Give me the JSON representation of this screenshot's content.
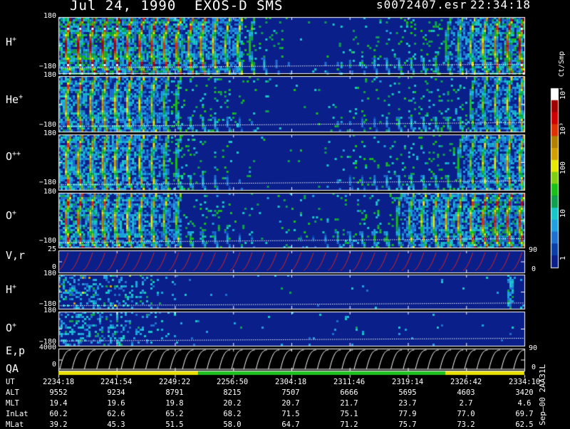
{
  "header": {
    "date": "Jul 24, 1990",
    "instrument": "EXOS-D SMS",
    "file": "s0072407.esr",
    "time": "22:34:18"
  },
  "colorbar": {
    "unit": "Ct/Smp",
    "ticks": [
      "10⁴",
      "10³",
      "100",
      "10",
      "1"
    ],
    "colors": [
      "#0a1f8a",
      "#0a3fa8",
      "#1e6fd0",
      "#1fa0e0",
      "#18c8c8",
      "#10a050",
      "#18c018",
      "#7fd010",
      "#e8e800",
      "#d0a000",
      "#b08000",
      "#e03000",
      "#d00000",
      "#a00000",
      "#ffffff"
    ]
  },
  "panels": [
    {
      "id": "h-plus",
      "label": "H",
      "sup": "+",
      "ymax": "180",
      "ymin": "−180",
      "right": ""
    },
    {
      "id": "he-plus",
      "label": "He",
      "sup": "+",
      "ymax": "180",
      "ymin": "−180",
      "right": ""
    },
    {
      "id": "o-plusplus",
      "label": "O",
      "sup": "++",
      "ymax": "180",
      "ymin": "−180",
      "right": ""
    },
    {
      "id": "o-plus",
      "label": "O",
      "sup": "+",
      "ymax": "180",
      "ymin": "−180",
      "right": ""
    },
    {
      "id": "vr",
      "label": "V,r",
      "sup": "",
      "ymax": "25",
      "ymin": "0",
      "right_top": "90",
      "right_bottom": "0"
    },
    {
      "id": "h-plus-2",
      "label": "H",
      "sup": "+",
      "ymax": "180",
      "ymin": "−180",
      "right": ""
    },
    {
      "id": "o-plus-2",
      "label": "O",
      "sup": "+",
      "ymax": "180",
      "ymin": "−180",
      "right": ""
    },
    {
      "id": "ep",
      "label": "E,p",
      "sup": "",
      "ymax": "4000",
      "ymin": "0",
      "right_top": "90",
      "right_bottom": "0"
    }
  ],
  "qa_label": "QA",
  "ephemeris": {
    "labels": [
      "UT",
      "ALT",
      "MLT",
      "InLat",
      "MLat"
    ],
    "columns": [
      {
        "UT": "2234:18",
        "ALT": "9552",
        "MLT": "19.4",
        "InLat": "60.2",
        "MLat": "39.2"
      },
      {
        "UT": "2241:54",
        "ALT": "9234",
        "MLT": "19.6",
        "InLat": "62.6",
        "MLat": "45.3"
      },
      {
        "UT": "2249:22",
        "ALT": "8791",
        "MLT": "19.8",
        "InLat": "65.2",
        "MLat": "51.5"
      },
      {
        "UT": "2256:50",
        "ALT": "8215",
        "MLT": "20.2",
        "InLat": "68.2",
        "MLat": "58.0"
      },
      {
        "UT": "2304:18",
        "ALT": "7507",
        "MLT": "20.7",
        "InLat": "71.5",
        "MLat": "64.7"
      },
      {
        "UT": "2311:46",
        "ALT": "6666",
        "MLT": "21.7",
        "InLat": "75.1",
        "MLat": "71.2"
      },
      {
        "UT": "2319:14",
        "ALT": "5695",
        "MLT": "23.7",
        "InLat": "77.9",
        "MLat": "75.7"
      },
      {
        "UT": "2326:42",
        "ALT": "4603",
        "MLT": "2.7",
        "InLat": "77.0",
        "MLat": "73.2"
      },
      {
        "UT": "2334:10",
        "ALT": "3420",
        "MLT": "4.6",
        "InLat": "69.7",
        "MLat": "62.5"
      }
    ]
  },
  "footer_note": "Sep–00 2AA31L",
  "chart_data": {
    "type": "heatmap",
    "title": "Jul 24, 1990   EXOS-D SMS",
    "xlabel": "UT",
    "x_ticks": [
      "2234:18",
      "2241:54",
      "2249:22",
      "2256:50",
      "2304:18",
      "2311:46",
      "2319:14",
      "2326:42",
      "2334:10"
    ],
    "series": [
      {
        "name": "H+",
        "ylim": [
          -180,
          180
        ],
        "spins": 38,
        "activity": [
          1,
          1,
          1,
          1,
          1,
          0.9,
          0.9,
          0.9,
          0.85,
          0.85,
          0.8,
          0.8,
          0.7,
          0.6,
          0.6,
          0.5,
          0.3,
          0.2,
          0.15,
          0.1,
          0.1,
          0.15,
          0.15,
          0.2,
          0.2,
          0.25,
          0.3,
          0.3,
          0.35,
          0.4,
          0.45,
          0.5,
          0.55,
          0.6,
          0.7,
          0.8,
          0.9,
          1
        ]
      },
      {
        "name": "He+",
        "ylim": [
          -180,
          180
        ],
        "spins": 38,
        "activity": [
          0.8,
          0.8,
          0.75,
          0.75,
          0.7,
          0.7,
          0.65,
          0.6,
          0.55,
          0.5,
          0.4,
          0.35,
          0.3,
          0.25,
          0.2,
          0.15,
          0.1,
          0.05,
          0.05,
          0.05,
          0.05,
          0.1,
          0.15,
          0.15,
          0.2,
          0.2,
          0.25,
          0.3,
          0.3,
          0.35,
          0.4,
          0.4,
          0.45,
          0.5,
          0.55,
          0.6,
          0.65,
          0.7
        ]
      },
      {
        "name": "O++",
        "ylim": [
          -180,
          180
        ],
        "spins": 38,
        "activity": [
          0.8,
          0.8,
          0.75,
          0.75,
          0.7,
          0.7,
          0.65,
          0.6,
          0.55,
          0.5,
          0.4,
          0.3,
          0.25,
          0.2,
          0.15,
          0.1,
          0.05,
          0.05,
          0.05,
          0.05,
          0.05,
          0.1,
          0.15,
          0.2,
          0.2,
          0.25,
          0.3,
          0.3,
          0.35,
          0.4,
          0.4,
          0.45,
          0.5,
          0.55,
          0.6,
          0.65,
          0.7,
          0.7
        ]
      },
      {
        "name": "O+",
        "ylim": [
          -180,
          180
        ],
        "spins": 38,
        "activity": [
          0.85,
          0.85,
          0.8,
          0.8,
          0.75,
          0.7,
          0.7,
          0.65,
          0.6,
          0.55,
          0.45,
          0.35,
          0.3,
          0.25,
          0.2,
          0.15,
          0.1,
          0.1,
          0.1,
          0.15,
          0.15,
          0.2,
          0.25,
          0.3,
          0.35,
          0.4,
          0.45,
          0.5,
          0.55,
          0.6,
          0.65,
          0.7,
          0.75,
          0.8,
          0.85,
          0.9,
          0.9,
          0.9
        ]
      },
      {
        "name": "V,r",
        "ylim": [
          0,
          25
        ],
        "right_ylim": [
          0,
          90
        ],
        "spins": 38
      },
      {
        "name": "H+ (lower)",
        "ylim": [
          -180,
          180
        ],
        "spins": 38
      },
      {
        "name": "O+ (lower)",
        "ylim": [
          -180,
          180
        ],
        "spins": 38
      },
      {
        "name": "E,p",
        "ylim": [
          0,
          4000
        ],
        "right_ylim": [
          0,
          90
        ],
        "spins": 38
      }
    ],
    "qa": {
      "segments": [
        {
          "from": 0,
          "to": 0.3,
          "color": "#e8e000"
        },
        {
          "from": 0.3,
          "to": 0.83,
          "color": "#20c020"
        },
        {
          "from": 0.83,
          "to": 1,
          "color": "#e8e000"
        }
      ]
    }
  }
}
